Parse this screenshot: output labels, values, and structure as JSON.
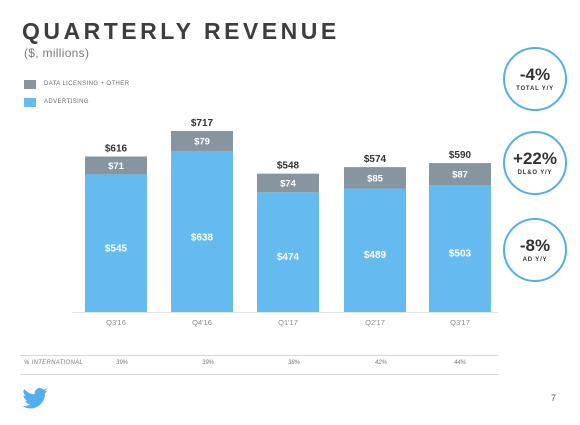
{
  "title": "QUARTERLY REVENUE",
  "subtitle": "($, millions)",
  "legend": [
    {
      "label": "DATA LICENSING + OTHER",
      "color": "#8695a0"
    },
    {
      "label": "ADVERTISING",
      "color": "#65bbf0"
    }
  ],
  "chart_data": {
    "type": "bar",
    "stacked": true,
    "categories": [
      "Q3'16",
      "Q4'16",
      "Q1'17",
      "Q2'17",
      "Q3'17"
    ],
    "series": [
      {
        "name": "ADVERTISING",
        "values": [
          545,
          638,
          474,
          489,
          503
        ],
        "labels": [
          "$545",
          "$638",
          "$474",
          "$489",
          "$503"
        ],
        "color": "#65bbf0"
      },
      {
        "name": "DATA LICENSING + OTHER",
        "values": [
          71,
          79,
          74,
          85,
          87
        ],
        "labels": [
          "$71",
          "$79",
          "$74",
          "$85",
          "$87"
        ],
        "color": "#8695a0"
      }
    ],
    "totals": [
      616,
      717,
      548,
      574,
      590
    ],
    "total_labels": [
      "$616",
      "$717",
      "$548",
      "$574",
      "$590"
    ],
    "ylim": [
      0,
      800
    ],
    "grid": false,
    "legend_position": "top-left"
  },
  "kpis": [
    {
      "value": "-4%",
      "label": "TOTAL Y/Y"
    },
    {
      "value": "+22%",
      "label": "DL&O Y/Y"
    },
    {
      "value": "-8%",
      "label": "AD Y/Y"
    }
  ],
  "international": {
    "label": "% INTERNATIONAL",
    "values": [
      "39%",
      "39%",
      "38%",
      "42%",
      "44%"
    ]
  },
  "page_number": "7",
  "icons": {
    "logo": "twitter-bird-icon"
  }
}
